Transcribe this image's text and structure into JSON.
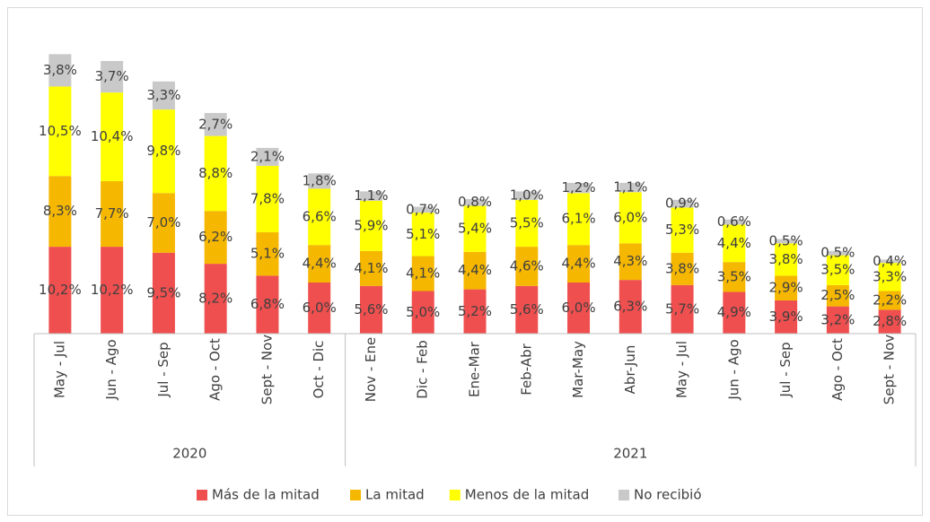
{
  "chart_data": {
    "type": "stacked-bar",
    "groups": [
      {
        "name": "2020",
        "categories": [
          "May - Jul",
          "Jun - Ago",
          "Jul - Sep",
          "Ago - Oct",
          "Sept - Nov",
          "Oct - Dic"
        ]
      },
      {
        "name": "2021",
        "categories": [
          "Nov - Ene",
          "Dic - Feb",
          "Ene-Mar",
          "Feb-Abr",
          "Mar-May",
          "Abr-Jun",
          "May - Jul",
          "Jun - Ago",
          "Jul - Sep",
          "Ago - Oct",
          "Sept - Nov"
        ]
      }
    ],
    "series": [
      {
        "name": "Más de la mitad",
        "color": "#ef4f4f",
        "values": [
          10.2,
          10.2,
          9.5,
          8.2,
          6.8,
          6.0,
          5.6,
          5.0,
          5.2,
          5.6,
          6.0,
          6.3,
          5.7,
          4.9,
          3.9,
          3.2,
          2.8
        ],
        "value_labels": [
          "10,2%",
          "10,2%",
          "9,5%",
          "8,2%",
          "6,8%",
          "6,0%",
          "5,6%",
          "5,0%",
          "5,2%",
          "5,6%",
          "6,0%",
          "6,3%",
          "5,7%",
          "4,9%",
          "3,9%",
          "3,2%",
          "2,8%"
        ]
      },
      {
        "name": "La mitad",
        "color": "#f5b700",
        "values": [
          8.3,
          7.7,
          7.0,
          6.2,
          5.1,
          4.4,
          4.1,
          4.1,
          4.4,
          4.6,
          4.4,
          4.3,
          3.8,
          3.5,
          2.9,
          2.5,
          2.2
        ],
        "value_labels": [
          "8,3%",
          "7,7%",
          "7,0%",
          "6,2%",
          "5,1%",
          "4,4%",
          "4,1%",
          "4,1%",
          "4,4%",
          "4,6%",
          "4,4%",
          "4,3%",
          "3,8%",
          "3,5%",
          "2,9%",
          "2,5%",
          "2,2%"
        ]
      },
      {
        "name": "Menos de la mitad",
        "color": "#ffff00",
        "values": [
          10.5,
          10.4,
          9.8,
          8.8,
          7.8,
          6.6,
          5.9,
          5.1,
          5.4,
          5.5,
          6.1,
          6.0,
          5.3,
          4.4,
          3.8,
          3.5,
          3.3
        ],
        "value_labels": [
          "10,5%",
          "10,4%",
          "9,8%",
          "8,8%",
          "7,8%",
          "6,6%",
          "5,9%",
          "5,1%",
          "5,4%",
          "5,5%",
          "6,1%",
          "6,0%",
          "5,3%",
          "4,4%",
          "3,8%",
          "3,5%",
          "3,3%"
        ]
      },
      {
        "name": "No recibió",
        "color": "#c9c9c9",
        "values": [
          3.8,
          3.7,
          3.3,
          2.7,
          2.1,
          1.8,
          1.1,
          0.7,
          0.8,
          1.0,
          1.2,
          1.1,
          0.9,
          0.6,
          0.5,
          0.5,
          0.4
        ],
        "value_labels": [
          "3,8%",
          "3,7%",
          "3,3%",
          "2,7%",
          "2,1%",
          "1,8%",
          "1,1%",
          "0,7%",
          "0,8%",
          "1,0%",
          "1,2%",
          "1,1%",
          "0,9%",
          "0,6%",
          "0,5%",
          "0,5%",
          "0,4%"
        ]
      }
    ],
    "legend": "bottom"
  }
}
